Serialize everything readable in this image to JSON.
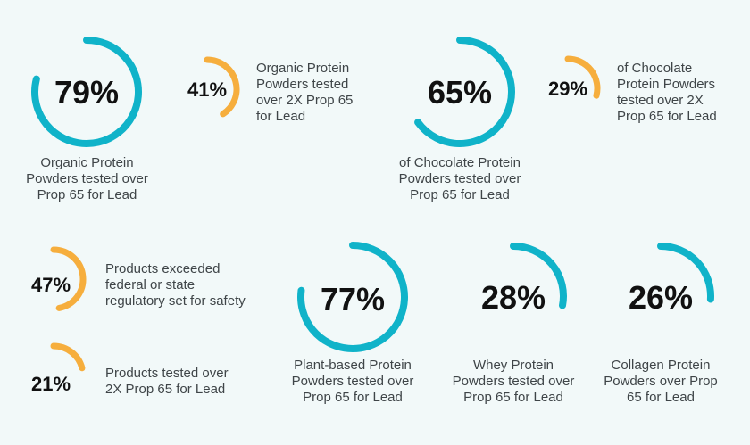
{
  "colors": {
    "teal": "#10b3c9",
    "orange": "#f6ae3d",
    "background": "#f2f9f9"
  },
  "stats": [
    {
      "id": "organic-79",
      "value": 79,
      "label": "79%",
      "color": "teal",
      "caption": [
        "Organic Protein",
        "Powders tested over",
        "Prop 65 for Lead"
      ]
    },
    {
      "id": "organic-41",
      "value": 41,
      "label": "41%",
      "color": "orange",
      "caption": [
        "Organic Protein",
        "Powders tested",
        "over 2X Prop 65",
        "for Lead"
      ]
    },
    {
      "id": "chocolate-65",
      "value": 65,
      "label": "65%",
      "color": "teal",
      "caption": [
        "of Chocolate Protein",
        "Powders tested over",
        "Prop 65 for Lead"
      ]
    },
    {
      "id": "chocolate-29",
      "value": 29,
      "label": "29%",
      "color": "orange",
      "caption": [
        "of Chocolate",
        "Protein Powders",
        "tested over 2X",
        "Prop 65 for Lead"
      ]
    },
    {
      "id": "regulatory-47",
      "value": 47,
      "label": "47%",
      "color": "orange",
      "caption": [
        "Products exceeded",
        "federal or state",
        "regulatory set for safety"
      ]
    },
    {
      "id": "products-21",
      "value": 21,
      "label": "21%",
      "color": "orange",
      "caption": [
        "Products tested over",
        "2X Prop 65 for Lead"
      ]
    },
    {
      "id": "plant-77",
      "value": 77,
      "label": "77%",
      "color": "teal",
      "caption": [
        "Plant-based Protein",
        "Powders tested over",
        "Prop 65 for Lead"
      ]
    },
    {
      "id": "whey-28",
      "value": 28,
      "label": "28%",
      "color": "teal",
      "caption": [
        "Whey Protein",
        "Powders tested over",
        "Prop 65 for Lead"
      ]
    },
    {
      "id": "collagen-26",
      "value": 26,
      "label": "26%",
      "color": "teal",
      "caption": [
        "Collagen Protein",
        "Powders over Prop",
        "65 for Lead"
      ]
    }
  ]
}
